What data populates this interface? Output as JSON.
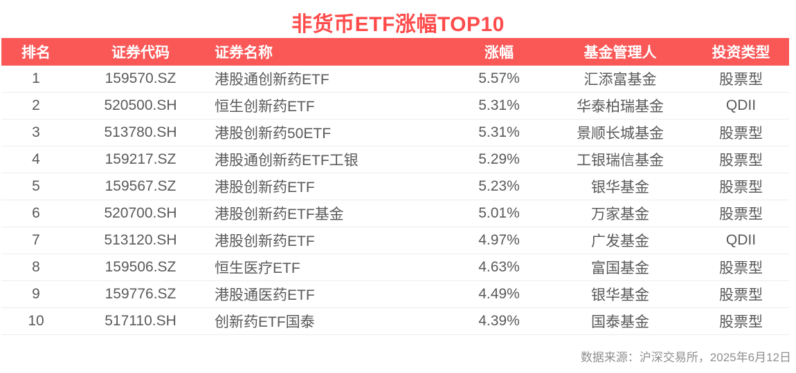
{
  "title": "非货币ETF涨幅TOP10",
  "footer": {
    "source_note": "数据来源：沪深交易所，2025年6月12日"
  },
  "colors": {
    "title_red": "#ff4b4b",
    "header_bg": "#fa5757",
    "header_text": "#ffffff",
    "pct_red": "#e5504f",
    "body_text": "#595959",
    "row_separator": "#ececf2",
    "footer_gray": "#8f8f8f"
  },
  "chart_data": {
    "type": "table",
    "title": "非货币ETF涨幅TOP10",
    "columns": [
      "排名",
      "证券代码",
      "证券名称",
      "涨幅",
      "基金管理人",
      "投资类型"
    ],
    "column_keys": [
      "rank",
      "code",
      "name",
      "pct",
      "manager",
      "type"
    ],
    "rows": [
      [
        "1",
        "159570.SZ",
        "港股通创新药ETF",
        "5.57%",
        "汇添富基金",
        "股票型"
      ],
      [
        "2",
        "520500.SH",
        "恒生创新药ETF",
        "5.31%",
        "华泰柏瑞基金",
        "QDII"
      ],
      [
        "3",
        "513780.SH",
        "港股创新药50ETF",
        "5.31%",
        "景顺长城基金",
        "股票型"
      ],
      [
        "4",
        "159217.SZ",
        "港股通创新药ETF工银",
        "5.29%",
        "工银瑞信基金",
        "股票型"
      ],
      [
        "5",
        "159567.SZ",
        "港股创新药ETF",
        "5.23%",
        "银华基金",
        "股票型"
      ],
      [
        "6",
        "520700.SH",
        "港股创新药ETF基金",
        "5.01%",
        "万家基金",
        "股票型"
      ],
      [
        "7",
        "513120.SH",
        "港股创新药ETF",
        "4.97%",
        "广发基金",
        "QDII"
      ],
      [
        "8",
        "159506.SZ",
        "恒生医疗ETF",
        "4.63%",
        "富国基金",
        "股票型"
      ],
      [
        "9",
        "159776.SZ",
        "港股通医药ETF",
        "4.49%",
        "银华基金",
        "股票型"
      ],
      [
        "10",
        "517110.SH",
        "创新药ETF国泰",
        "4.39%",
        "国泰基金",
        "股票型"
      ]
    ],
    "value_format": "percent",
    "values_numeric": [
      5.57,
      5.31,
      5.31,
      5.29,
      5.23,
      5.01,
      4.97,
      4.63,
      4.49,
      4.39
    ]
  }
}
